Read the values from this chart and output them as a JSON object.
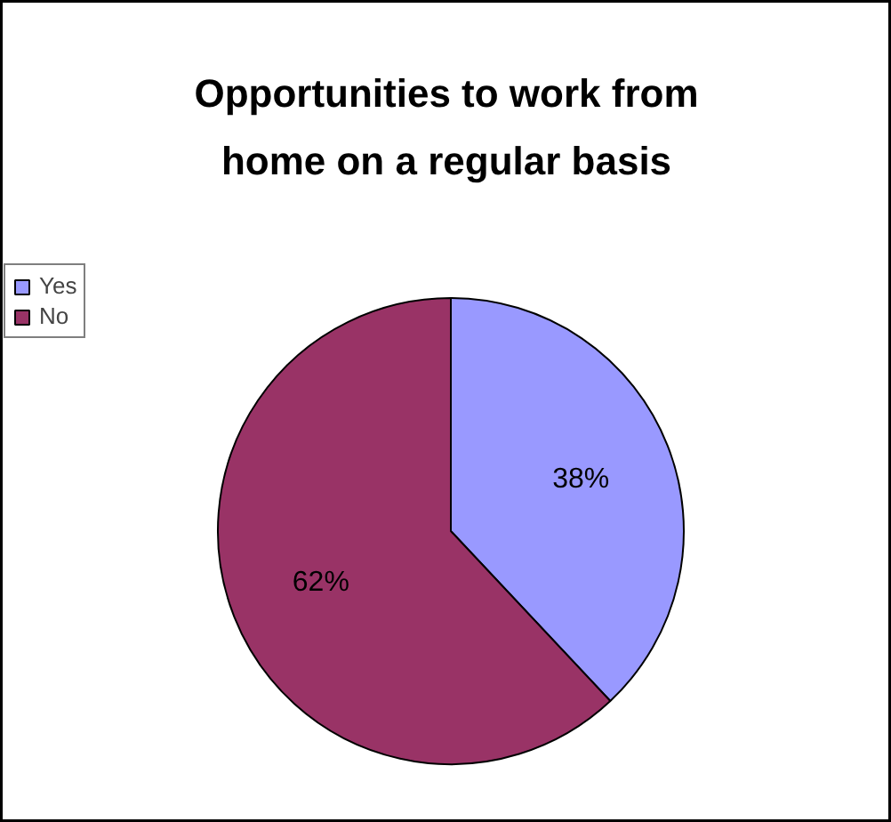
{
  "chart_data": {
    "type": "pie",
    "title": "Opportunities to work from home on a regular basis",
    "categories": [
      "Yes",
      "No"
    ],
    "values": [
      38,
      62
    ],
    "colors": [
      "#9999ff",
      "#993366"
    ],
    "value_labels": [
      "38%",
      "62%"
    ],
    "legend": "left"
  }
}
